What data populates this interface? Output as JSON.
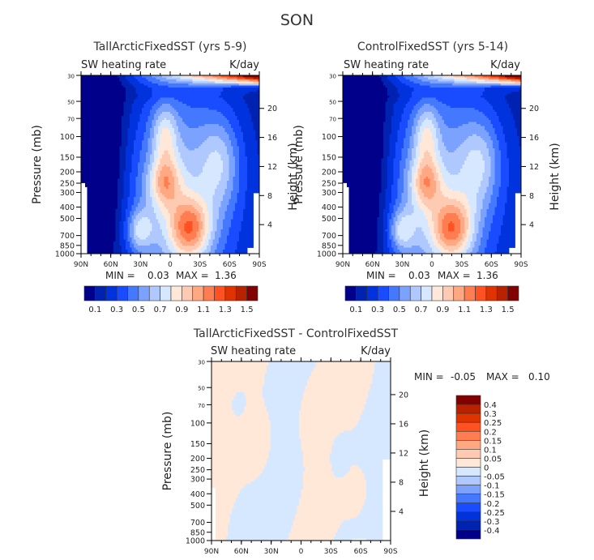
{
  "figure_title": "SON",
  "chart_data": [
    {
      "type": "heatmap",
      "id": "tall",
      "title": "TallArcticFixedSST (yrs 5-9)",
      "left_label": "SW heating rate",
      "right_label": "K/day",
      "xlabel": "",
      "ylabel": "Pressure (mb)",
      "ylabel_right": "Height (km)",
      "x_ticks": [
        "90N",
        "60N",
        "30N",
        "0",
        "30S",
        "60S",
        "90S"
      ],
      "x_range": [
        90,
        -90
      ],
      "y_ticks": [
        "30",
        "50",
        "70",
        "100",
        "150",
        "200",
        "250",
        "300",
        "400",
        "500",
        "700",
        "850",
        "1000"
      ],
      "y_range_mb": [
        30,
        1000
      ],
      "height_ticks": [
        "20",
        "16",
        "12",
        "8",
        "4"
      ],
      "min_text": "MIN =",
      "min_value": "0.03",
      "max_text": "MAX =",
      "max_value": "1.36",
      "levels": [
        0.1,
        0.2,
        0.3,
        0.4,
        0.5,
        0.6,
        0.7,
        0.8,
        0.9,
        1.0,
        1.1,
        1.2,
        1.3,
        1.4,
        1.5
      ],
      "colorbar_labels": [
        "0.1",
        "0.3",
        "0.5",
        "0.7",
        "0.9",
        "1.1",
        "1.3",
        "1.5"
      ],
      "colorbar_orientation": "horizontal"
    },
    {
      "type": "heatmap",
      "id": "control",
      "title": "ControlFixedSST (yrs 5-14)",
      "left_label": "SW heating rate",
      "right_label": "K/day",
      "xlabel": "",
      "ylabel": "Pressure (mb)",
      "ylabel_right": "Height (km)",
      "x_ticks": [
        "90N",
        "60N",
        "30N",
        "0",
        "30S",
        "60S",
        "90S"
      ],
      "x_range": [
        90,
        -90
      ],
      "y_ticks": [
        "30",
        "50",
        "70",
        "100",
        "150",
        "200",
        "250",
        "300",
        "400",
        "500",
        "700",
        "850",
        "1000"
      ],
      "y_range_mb": [
        30,
        1000
      ],
      "height_ticks": [
        "20",
        "16",
        "12",
        "8",
        "4"
      ],
      "min_text": "MIN =",
      "min_value": "0.03",
      "max_text": "MAX =",
      "max_value": "1.36",
      "levels": [
        0.1,
        0.2,
        0.3,
        0.4,
        0.5,
        0.6,
        0.7,
        0.8,
        0.9,
        1.0,
        1.1,
        1.2,
        1.3,
        1.4,
        1.5
      ],
      "colorbar_labels": [
        "0.1",
        "0.3",
        "0.5",
        "0.7",
        "0.9",
        "1.1",
        "1.3",
        "1.5"
      ],
      "colorbar_orientation": "horizontal"
    },
    {
      "type": "heatmap",
      "id": "diff",
      "title": "TallArcticFixedSST - ControlFixedSST",
      "left_label": "SW heating rate",
      "right_label": "K/day",
      "xlabel": "",
      "ylabel": "Pressure (mb)",
      "ylabel_right": "Height (km)",
      "x_ticks": [
        "90N",
        "60N",
        "30N",
        "0",
        "30S",
        "60S",
        "90S"
      ],
      "x_range": [
        90,
        -90
      ],
      "y_ticks": [
        "30",
        "50",
        "70",
        "100",
        "150",
        "200",
        "250",
        "300",
        "400",
        "500",
        "700",
        "850",
        "1000"
      ],
      "y_range_mb": [
        30,
        1000
      ],
      "height_ticks": [
        "20",
        "16",
        "12",
        "8",
        "4"
      ],
      "min_text": "MIN =",
      "min_value": "-0.05",
      "max_text": "MAX =",
      "max_value": "0.10",
      "levels": [
        -0.4,
        -0.3,
        -0.25,
        -0.2,
        -0.15,
        -0.1,
        -0.05,
        0,
        0.05,
        0.1,
        0.15,
        0.2,
        0.25,
        0.3,
        0.4
      ],
      "colorbar_labels": [
        "0.4",
        "0.3",
        "0.25",
        "0.2",
        "0.15",
        "0.1",
        "0.05",
        "0",
        "-0.05",
        "-0.1",
        "-0.15",
        "-0.2",
        "-0.25",
        "-0.3",
        "-0.4"
      ],
      "colorbar_orientation": "vertical"
    }
  ],
  "palette": [
    "#00008b",
    "#0022b0",
    "#0033dd",
    "#1a4cff",
    "#4479ff",
    "#7ba2ff",
    "#afc9ff",
    "#d6e8ff",
    "#ffe8d8",
    "#ffcab2",
    "#ffa882",
    "#ff7d50",
    "#ff5122",
    "#e03300",
    "#b82200",
    "#820000"
  ]
}
